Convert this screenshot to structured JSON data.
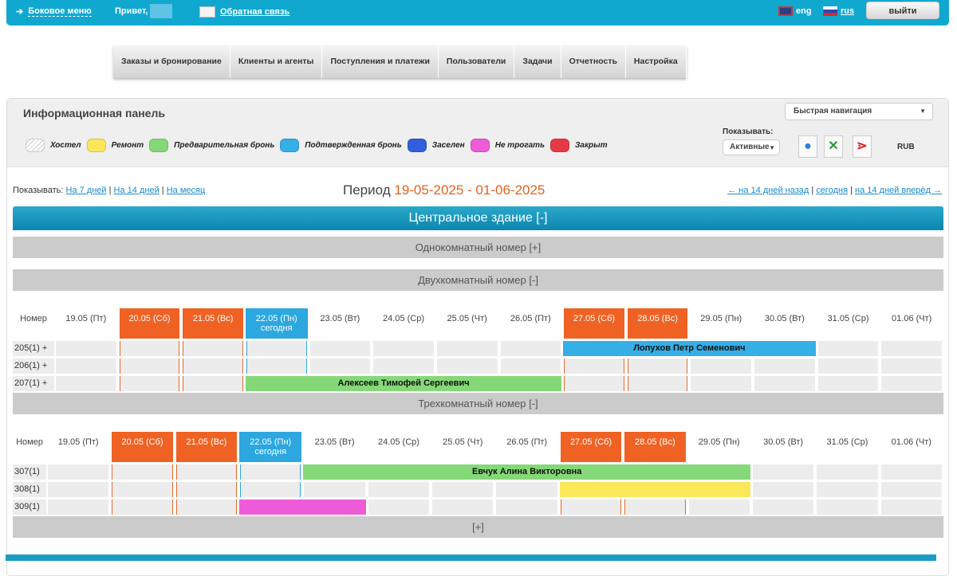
{
  "topbar": {
    "side_menu": "Боковое меню",
    "hello": "Привет,",
    "feedback": "Обратная связь",
    "lang_en": "eng",
    "lang_ru": "rus",
    "logout": "выйти"
  },
  "menu": [
    "Заказы и бронирование",
    "Клиенты и агенты",
    "Поступления и платежи",
    "Пользователи",
    "Задачи",
    "Отчетность",
    "Настройка"
  ],
  "panel": {
    "title": "Информационная панель",
    "quick_nav": "Быстрая навигация",
    "show_label": "Показывать:",
    "show_value": "Активные",
    "currency": "RUB"
  },
  "legend": [
    {
      "label": "Хостел",
      "color": "#e8e8e8"
    },
    {
      "label": "Ремонт",
      "color": "#fbe75a"
    },
    {
      "label": "Предварительная бронь",
      "color": "#85d877"
    },
    {
      "label": "Подтвержденная бронь",
      "color": "#36aee6"
    },
    {
      "label": "Заселен",
      "color": "#2f5fdc"
    },
    {
      "label": "Не трогать",
      "color": "#ee5bd9"
    },
    {
      "label": "Закрыт",
      "color": "#e53a45"
    }
  ],
  "period": {
    "show": "Показывать:",
    "d7": "На 7 дней",
    "d14": "На 14 дней",
    "month": "На месяц",
    "label": "Период",
    "range": "19-05-2025 - 01-06-2025",
    "back": "← на 14 дней назад",
    "today": "сегодня",
    "fwd": "на 14 дней вперёд →"
  },
  "building": "Центральное здание [-]",
  "room_types": {
    "single": "Однокомнатный номер [+]",
    "double": "Двухкомнатный номер [-]",
    "triple": "Трехкомнатный номер [-]",
    "more": "[+]"
  },
  "table": {
    "room_header": "Номер",
    "today_label": "сегодня",
    "days": [
      {
        "label": "19.05 (Пт)",
        "type": ""
      },
      {
        "label": "20.05 (Сб)",
        "type": "we"
      },
      {
        "label": "21.05 (Вс)",
        "type": "we"
      },
      {
        "label": "22.05 (Пн)",
        "type": "td"
      },
      {
        "label": "23.05 (Вт)",
        "type": ""
      },
      {
        "label": "24.05 (Ср)",
        "type": ""
      },
      {
        "label": "25.05 (Чт)",
        "type": ""
      },
      {
        "label": "26.05 (Пт)",
        "type": ""
      },
      {
        "label": "27.05 (Сб)",
        "type": "we"
      },
      {
        "label": "28.05 (Вс)",
        "type": "we"
      },
      {
        "label": "29.05 (Пн)",
        "type": ""
      },
      {
        "label": "30.05 (Вт)",
        "type": ""
      },
      {
        "label": "31.05 (Ср)",
        "type": ""
      },
      {
        "label": "01.06 (Чт)",
        "type": ""
      }
    ]
  },
  "sections": [
    {
      "rooms": [
        "205(1) +",
        "206(1) +",
        "207(1) +"
      ],
      "bookings": [
        {
          "room": 0,
          "from": "27.05",
          "to": "30.05",
          "guest": "Лопухов Петр Семенович",
          "color": "#36aee6"
        },
        {
          "room": 2,
          "from": "22.05",
          "to": "26.05",
          "guest": "Алексеев Тимофей Сергеевич",
          "color": "#85d877"
        }
      ]
    },
    {
      "rooms": [
        "307(1)",
        "308(1)",
        "309(1)"
      ],
      "bookings": [
        {
          "room": 0,
          "from": "23.05",
          "to": "29.05",
          "guest": "Евчук Алина Викторовна",
          "color": "#85d877"
        },
        {
          "room": 1,
          "from": "27.05",
          "to": "29.05",
          "guest": "",
          "color": "#fbe75a"
        },
        {
          "room": 2,
          "from": "22.05",
          "to": "23.05",
          "guest": "",
          "color": "#ee5bd9"
        }
      ]
    }
  ]
}
